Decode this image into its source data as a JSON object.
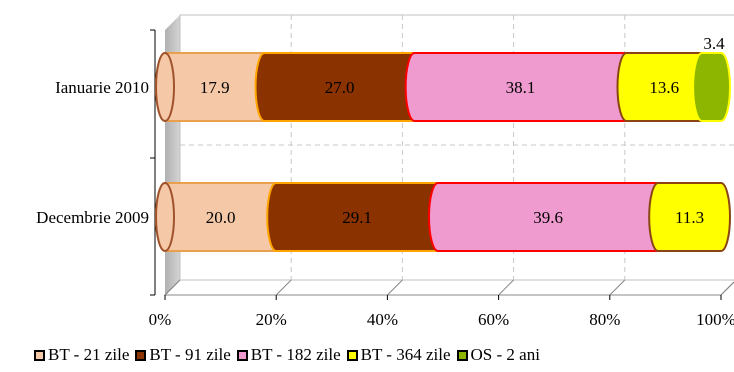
{
  "chart_data": {
    "type": "bar",
    "orientation": "horizontal",
    "stacked": "percent",
    "categories": [
      "Ianuarie 2010",
      "Decembrie 2009"
    ],
    "series": [
      {
        "name": "BT - 21 zile",
        "values": [
          17.9,
          20.0
        ],
        "labels": [
          "17.9",
          "20.0"
        ],
        "color": "#F5C9A8",
        "edge": "#E8A04C"
      },
      {
        "name": "BT - 91 zile",
        "values": [
          27.0,
          29.1
        ],
        "labels": [
          "27.0",
          "29.1"
        ],
        "color": "#8B3300",
        "edge": "#FFA500"
      },
      {
        "name": "BT - 182 zile",
        "values": [
          38.1,
          39.6
        ],
        "labels": [
          "38.1",
          "39.6"
        ],
        "color": "#F09BD0",
        "edge": "#FF0000"
      },
      {
        "name": "BT - 364 zile",
        "values": [
          13.6,
          11.3
        ],
        "labels": [
          "13.6",
          "11.3"
        ],
        "color": "#FFFF00",
        "edge": "#8B4513"
      },
      {
        "name": "OS - 2 ani",
        "values": [
          3.4,
          0
        ],
        "labels": [
          "3.4",
          ""
        ],
        "color": "#8DB600",
        "edge": "#FFFF00"
      }
    ],
    "x_ticks": [
      "0%",
      "20%",
      "40%",
      "60%",
      "80%",
      "100%"
    ],
    "xlim": [
      0,
      100
    ],
    "grid": true,
    "legend_position": "bottom",
    "style": "3d-cylinder"
  }
}
